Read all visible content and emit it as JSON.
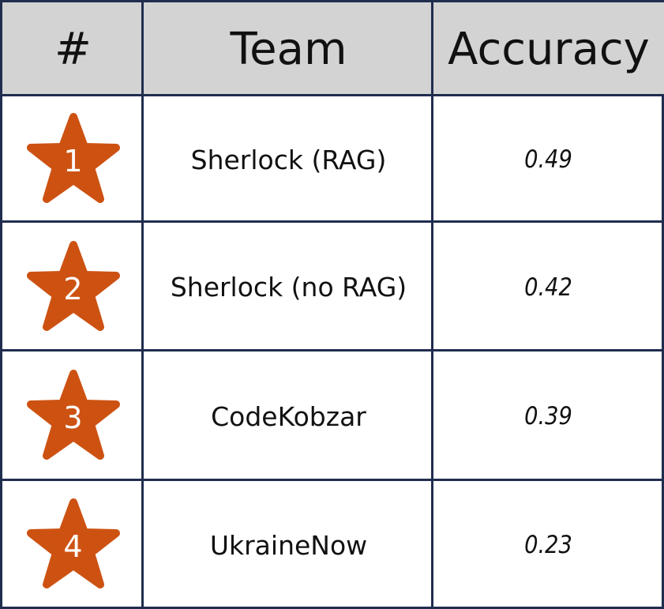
{
  "header": {
    "rank": "#",
    "team": "Team",
    "accuracy": "Accuracy"
  },
  "colors": {
    "star": "#cd5212",
    "border": "#1f2d4e",
    "header_bg": "#d3d3d3"
  },
  "rows": [
    {
      "rank": "1",
      "team": "Sherlock (RAG)",
      "accuracy": "0.49",
      "icon": "star-icon"
    },
    {
      "rank": "2",
      "team": "Sherlock (no RAG)",
      "accuracy": "0.42",
      "icon": "star-icon"
    },
    {
      "rank": "3",
      "team": "CodeKobzar",
      "accuracy": "0.39",
      "icon": "star-icon"
    },
    {
      "rank": "4",
      "team": "UkraineNow",
      "accuracy": "0.23",
      "icon": "star-icon"
    }
  ]
}
